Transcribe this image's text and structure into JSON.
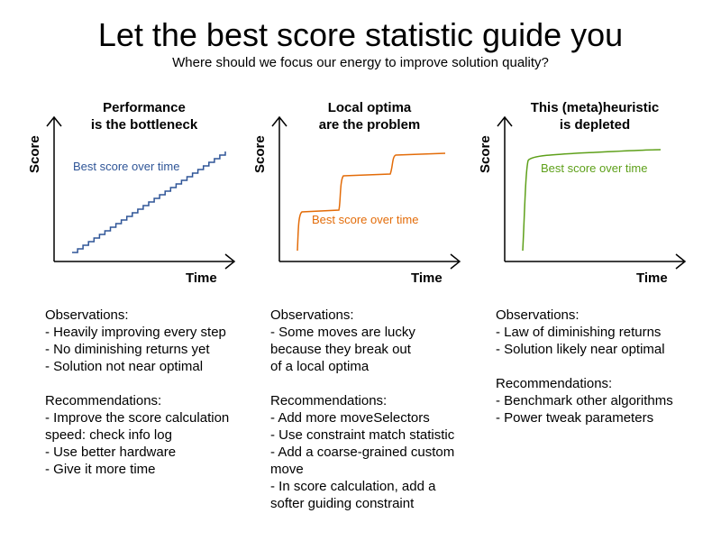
{
  "title": "Let the best score statistic guide you",
  "subtitle": "Where should we focus our energy to improve solution quality?",
  "colors": {
    "performance": "#2f5597",
    "local_optima": "#e36c09",
    "depleted": "#5ea01a"
  },
  "panels": [
    {
      "title_line1": "Performance",
      "title_line2": "is the bottleneck",
      "y_axis": "Score",
      "x_axis": "Time",
      "curve_label": "Best score over time",
      "observations_heading": "Observations:",
      "observations": [
        "- Heavily improving every step",
        "- No diminishing returns yet",
        "- Solution not near optimal"
      ],
      "recommendations_heading": "Recommendations:",
      "recommendations": [
        "- Improve the score calculation",
        "speed: check info log",
        "- Use better hardware",
        "- Give it more time"
      ]
    },
    {
      "title_line1": "Local optima",
      "title_line2": "are the problem",
      "y_axis": "Score",
      "x_axis": "Time",
      "curve_label": "Best score over time",
      "observations_heading": "Observations:",
      "observations": [
        "- Some moves are lucky",
        "because they break out",
        "of a local optima"
      ],
      "recommendations_heading": "Recommendations:",
      "recommendations": [
        "- Add more moveSelectors",
        "- Use constraint match statistic",
        "- Add a coarse-grained custom",
        "move",
        "- In score calculation, add a",
        "softer guiding constraint"
      ]
    },
    {
      "title_line1": "This (meta)heuristic",
      "title_line2": "is depleted",
      "y_axis": "Score",
      "x_axis": "Time",
      "curve_label": "Best score over time",
      "observations_heading": "Observations:",
      "observations": [
        "- Law of diminishing returns",
        "- Solution likely near optimal"
      ],
      "recommendations_heading": "Recommendations:",
      "recommendations": [
        "- Benchmark other algorithms",
        "- Power tweak parameters"
      ]
    }
  ]
}
